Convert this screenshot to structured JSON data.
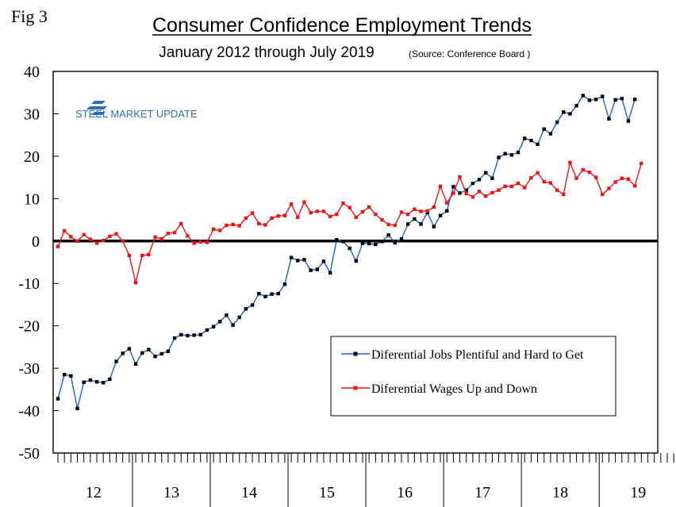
{
  "figure_label": "Fig 3",
  "logo_text": "STEEL MARKET UPDATE",
  "colors": {
    "series1": "#1f5fc8",
    "series2": "#e8161b",
    "zero_line": "#000000",
    "axis": "#000000",
    "marker": "#000000",
    "logo_blue": "#2c6fb5"
  },
  "chart_data": {
    "type": "line",
    "title": "Consumer Confidence Employment Trends",
    "subtitle": "January 2012 through July 2019",
    "source": "(Source: Conference Board )",
    "xlabel": "",
    "ylabel": "",
    "ylim": [
      -50,
      40
    ],
    "yticks": [
      40,
      30,
      20,
      10,
      0,
      -10,
      -20,
      -30,
      -40,
      -50
    ],
    "x_range": [
      0,
      96
    ],
    "year_labels": [
      "12",
      "13",
      "14",
      "15",
      "16",
      "17",
      "18",
      "19"
    ],
    "legend_position": "lower-right",
    "grid": false,
    "series": [
      {
        "name": "Diferential Jobs Plentiful and Hard to Get",
        "values": [
          -37.2,
          -31.5,
          -31.8,
          -39.5,
          -33.3,
          -32.8,
          -33.2,
          -33.4,
          -32.6,
          -28.4,
          -26.5,
          -25.4,
          -29.0,
          -26.4,
          -25.6,
          -27.2,
          -26.6,
          -26.0,
          -22.9,
          -22.1,
          -22.3,
          -22.2,
          -22.1,
          -21.0,
          -20.2,
          -19.0,
          -17.5,
          -19.8,
          -18.0,
          -16.0,
          -15.1,
          -12.4,
          -13.1,
          -12.5,
          -12.4,
          -10.2,
          -3.9,
          -4.6,
          -4.4,
          -6.9,
          -6.7,
          -4.8,
          -7.5,
          0.3,
          -0.1,
          -1.7,
          -4.7,
          -0.5,
          -0.6,
          -0.8,
          -0.1,
          1.4,
          -0.4,
          0.5,
          4.0,
          5.2,
          4.0,
          6.7,
          3.4,
          6.0,
          7.1,
          12.8,
          11.3,
          12.0,
          13.6,
          14.5,
          16.1,
          14.8,
          19.7,
          20.6,
          20.3,
          20.9,
          24.2,
          23.7,
          22.8,
          26.4,
          25.3,
          28.0,
          30.4,
          30.0,
          31.9,
          34.3,
          33.2,
          33.4,
          34.1,
          28.8,
          33.3,
          33.6,
          28.3,
          33.4
        ],
        "start_index": 0
      },
      {
        "name": "Diferential Wages Up and Down",
        "values": [
          -1.3,
          2.4,
          1.0,
          0.0,
          1.5,
          0.4,
          -0.5,
          0.1,
          1.1,
          1.7,
          0.0,
          -3.4,
          -9.8,
          -3.4,
          -3.2,
          0.9,
          0.5,
          1.8,
          2.0,
          4.1,
          1.2,
          -0.5,
          -0.2,
          -0.3,
          2.8,
          2.5,
          3.7,
          3.9,
          3.6,
          5.4,
          6.6,
          4.1,
          3.8,
          5.4,
          5.9,
          6.0,
          8.7,
          5.6,
          9.2,
          6.7,
          7.0,
          7.0,
          5.8,
          6.3,
          8.9,
          7.9,
          5.6,
          6.9,
          8.0,
          6.3,
          5.0,
          3.9,
          3.7,
          6.8,
          6.3,
          7.5,
          7.0,
          7.1,
          8.0,
          12.9,
          9.0,
          11.3,
          15.1,
          11.2,
          10.4,
          11.7,
          10.6,
          11.4,
          12.0,
          12.9,
          12.9,
          13.6,
          12.6,
          14.9,
          16.1,
          14.0,
          13.7,
          12.0,
          11.0,
          18.5,
          14.8,
          16.8,
          16.2,
          15.0,
          11.0,
          12.4,
          13.9,
          14.8,
          14.6,
          13.0,
          18.3
        ],
        "start_index": 0
      }
    ]
  }
}
